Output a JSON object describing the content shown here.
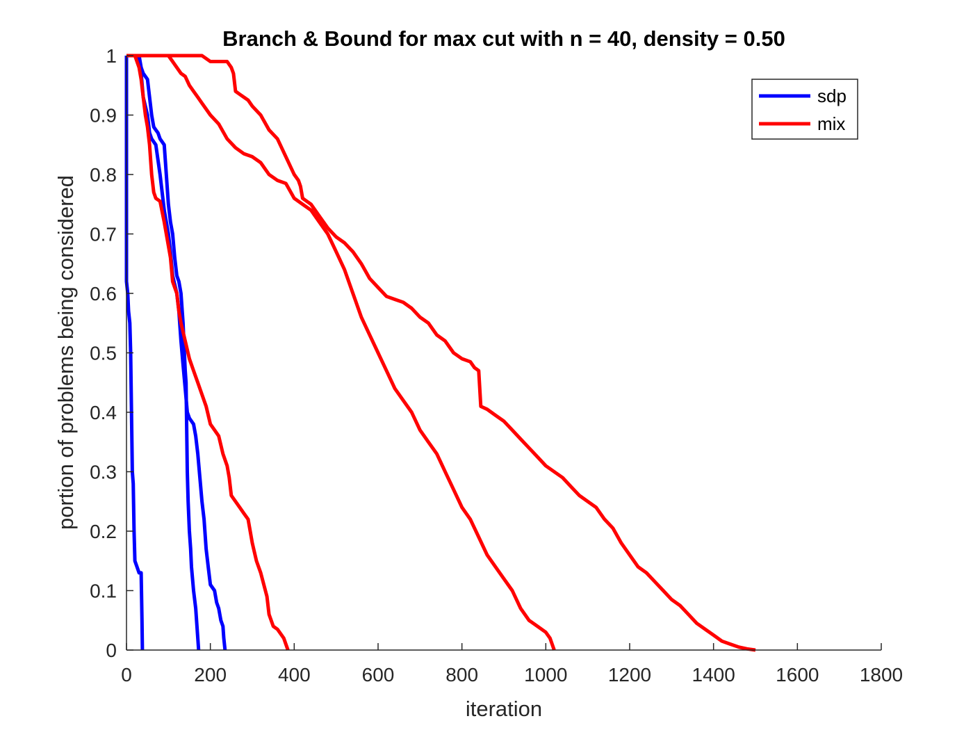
{
  "chart_data": {
    "type": "line",
    "title": "Branch & Bound for max cut with n = 40, density = 0.50",
    "xlabel": "iteration",
    "ylabel": "portion of problems being considered",
    "xlim": [
      0,
      1800
    ],
    "ylim": [
      0,
      1
    ],
    "xticks": [
      0,
      200,
      400,
      600,
      800,
      1000,
      1200,
      1400,
      1600,
      1800
    ],
    "yticks": [
      0,
      0.1,
      0.2,
      0.3,
      0.4,
      0.5,
      0.6,
      0.7,
      0.8,
      0.9,
      1
    ],
    "grid": false,
    "legend": {
      "position": "top-right",
      "entries": [
        {
          "name": "sdp",
          "color": "#0000ff"
        },
        {
          "name": "mix",
          "color": "#ff0000"
        }
      ]
    },
    "series": [
      {
        "name": "sdp",
        "color": "#0000ff",
        "points": [
          [
            0,
            1
          ],
          [
            0,
            0.62
          ],
          [
            3,
            0.6
          ],
          [
            5,
            0.57
          ],
          [
            8,
            0.55
          ],
          [
            10,
            0.5
          ],
          [
            12,
            0.4
          ],
          [
            14,
            0.3
          ],
          [
            16,
            0.28
          ],
          [
            18,
            0.2
          ],
          [
            20,
            0.15
          ],
          [
            25,
            0.14
          ],
          [
            30,
            0.13
          ],
          [
            35,
            0.13
          ],
          [
            37,
            0.05
          ],
          [
            38,
            0
          ]
        ]
      },
      {
        "name": "sdp",
        "color": "#0000ff",
        "points": [
          [
            30,
            1
          ],
          [
            35,
            0.98
          ],
          [
            40,
            0.97
          ],
          [
            50,
            0.96
          ],
          [
            55,
            0.93
          ],
          [
            60,
            0.9
          ],
          [
            65,
            0.88
          ],
          [
            70,
            0.875
          ],
          [
            75,
            0.87
          ],
          [
            80,
            0.86
          ],
          [
            90,
            0.85
          ],
          [
            95,
            0.8
          ],
          [
            100,
            0.75
          ],
          [
            105,
            0.72
          ],
          [
            110,
            0.7
          ],
          [
            115,
            0.66
          ],
          [
            120,
            0.63
          ],
          [
            125,
            0.62
          ],
          [
            130,
            0.6
          ],
          [
            135,
            0.55
          ],
          [
            138,
            0.5
          ],
          [
            140,
            0.47
          ],
          [
            142,
            0.45
          ],
          [
            143,
            0.4
          ],
          [
            144,
            0.35
          ],
          [
            145,
            0.3
          ],
          [
            147,
            0.25
          ],
          [
            150,
            0.2
          ],
          [
            153,
            0.17
          ],
          [
            155,
            0.14
          ],
          [
            160,
            0.1
          ],
          [
            165,
            0.07
          ],
          [
            168,
            0.04
          ],
          [
            170,
            0.02
          ],
          [
            172,
            0
          ]
        ]
      },
      {
        "name": "sdp",
        "color": "#0000ff",
        "points": [
          [
            28,
            1
          ],
          [
            35,
            0.97
          ],
          [
            40,
            0.93
          ],
          [
            50,
            0.9
          ],
          [
            55,
            0.87
          ],
          [
            60,
            0.86
          ],
          [
            70,
            0.85
          ],
          [
            80,
            0.8
          ],
          [
            90,
            0.74
          ],
          [
            100,
            0.7
          ],
          [
            105,
            0.67
          ],
          [
            110,
            0.63
          ],
          [
            120,
            0.6
          ],
          [
            125,
            0.57
          ],
          [
            130,
            0.52
          ],
          [
            135,
            0.48
          ],
          [
            140,
            0.44
          ],
          [
            145,
            0.4
          ],
          [
            150,
            0.39
          ],
          [
            160,
            0.38
          ],
          [
            165,
            0.36
          ],
          [
            170,
            0.33
          ],
          [
            175,
            0.29
          ],
          [
            180,
            0.25
          ],
          [
            185,
            0.22
          ],
          [
            190,
            0.17
          ],
          [
            195,
            0.14
          ],
          [
            200,
            0.11
          ],
          [
            210,
            0.1
          ],
          [
            215,
            0.08
          ],
          [
            220,
            0.07
          ],
          [
            225,
            0.05
          ],
          [
            230,
            0.04
          ],
          [
            232,
            0.02
          ],
          [
            235,
            0
          ]
        ]
      },
      {
        "name": "mix",
        "color": "#ff0000",
        "points": [
          [
            0,
            1
          ],
          [
            20,
            1
          ],
          [
            25,
            0.99
          ],
          [
            30,
            0.98
          ],
          [
            35,
            0.96
          ],
          [
            40,
            0.93
          ],
          [
            45,
            0.9
          ],
          [
            50,
            0.88
          ],
          [
            55,
            0.85
          ],
          [
            60,
            0.8
          ],
          [
            65,
            0.77
          ],
          [
            70,
            0.76
          ],
          [
            80,
            0.755
          ],
          [
            90,
            0.72
          ],
          [
            95,
            0.7
          ],
          [
            100,
            0.68
          ],
          [
            105,
            0.66
          ],
          [
            110,
            0.62
          ],
          [
            120,
            0.6
          ],
          [
            125,
            0.57
          ],
          [
            130,
            0.55
          ],
          [
            140,
            0.52
          ],
          [
            150,
            0.49
          ],
          [
            160,
            0.47
          ],
          [
            170,
            0.45
          ],
          [
            180,
            0.43
          ],
          [
            190,
            0.41
          ],
          [
            200,
            0.38
          ],
          [
            210,
            0.37
          ],
          [
            220,
            0.36
          ],
          [
            230,
            0.33
          ],
          [
            240,
            0.31
          ],
          [
            245,
            0.29
          ],
          [
            250,
            0.26
          ],
          [
            260,
            0.25
          ],
          [
            270,
            0.24
          ],
          [
            280,
            0.23
          ],
          [
            290,
            0.22
          ],
          [
            300,
            0.18
          ],
          [
            310,
            0.15
          ],
          [
            320,
            0.13
          ],
          [
            335,
            0.09
          ],
          [
            340,
            0.06
          ],
          [
            350,
            0.04
          ],
          [
            360,
            0.035
          ],
          [
            375,
            0.02
          ],
          [
            380,
            0.01
          ],
          [
            385,
            0
          ]
        ]
      },
      {
        "name": "mix",
        "color": "#ff0000",
        "points": [
          [
            0,
            1
          ],
          [
            100,
            1
          ],
          [
            110,
            0.99
          ],
          [
            120,
            0.98
          ],
          [
            130,
            0.97
          ],
          [
            140,
            0.965
          ],
          [
            150,
            0.95
          ],
          [
            160,
            0.94
          ],
          [
            170,
            0.93
          ],
          [
            180,
            0.92
          ],
          [
            200,
            0.9
          ],
          [
            220,
            0.885
          ],
          [
            240,
            0.86
          ],
          [
            260,
            0.845
          ],
          [
            280,
            0.835
          ],
          [
            300,
            0.83
          ],
          [
            320,
            0.82
          ],
          [
            340,
            0.8
          ],
          [
            360,
            0.79
          ],
          [
            380,
            0.785
          ],
          [
            400,
            0.76
          ],
          [
            420,
            0.75
          ],
          [
            440,
            0.74
          ],
          [
            460,
            0.72
          ],
          [
            480,
            0.7
          ],
          [
            500,
            0.67
          ],
          [
            520,
            0.64
          ],
          [
            540,
            0.6
          ],
          [
            560,
            0.56
          ],
          [
            580,
            0.53
          ],
          [
            600,
            0.5
          ],
          [
            620,
            0.47
          ],
          [
            640,
            0.44
          ],
          [
            660,
            0.42
          ],
          [
            680,
            0.4
          ],
          [
            700,
            0.37
          ],
          [
            720,
            0.35
          ],
          [
            740,
            0.33
          ],
          [
            760,
            0.3
          ],
          [
            780,
            0.27
          ],
          [
            800,
            0.24
          ],
          [
            820,
            0.22
          ],
          [
            840,
            0.19
          ],
          [
            860,
            0.16
          ],
          [
            880,
            0.14
          ],
          [
            900,
            0.12
          ],
          [
            920,
            0.1
          ],
          [
            940,
            0.07
          ],
          [
            960,
            0.05
          ],
          [
            980,
            0.04
          ],
          [
            1000,
            0.03
          ],
          [
            1010,
            0.02
          ],
          [
            1020,
            0
          ]
        ]
      },
      {
        "name": "mix",
        "color": "#ff0000",
        "points": [
          [
            0,
            1
          ],
          [
            100,
            1
          ],
          [
            180,
            1
          ],
          [
            200,
            0.99
          ],
          [
            240,
            0.99
          ],
          [
            250,
            0.98
          ],
          [
            255,
            0.97
          ],
          [
            260,
            0.94
          ],
          [
            270,
            0.935
          ],
          [
            280,
            0.93
          ],
          [
            290,
            0.925
          ],
          [
            300,
            0.915
          ],
          [
            320,
            0.9
          ],
          [
            340,
            0.875
          ],
          [
            360,
            0.86
          ],
          [
            380,
            0.83
          ],
          [
            400,
            0.8
          ],
          [
            410,
            0.79
          ],
          [
            415,
            0.78
          ],
          [
            420,
            0.76
          ],
          [
            430,
            0.755
          ],
          [
            440,
            0.75
          ],
          [
            460,
            0.73
          ],
          [
            480,
            0.71
          ],
          [
            500,
            0.695
          ],
          [
            520,
            0.685
          ],
          [
            540,
            0.67
          ],
          [
            560,
            0.65
          ],
          [
            580,
            0.625
          ],
          [
            600,
            0.61
          ],
          [
            620,
            0.595
          ],
          [
            640,
            0.59
          ],
          [
            660,
            0.585
          ],
          [
            680,
            0.575
          ],
          [
            700,
            0.56
          ],
          [
            720,
            0.55
          ],
          [
            740,
            0.53
          ],
          [
            760,
            0.52
          ],
          [
            780,
            0.5
          ],
          [
            800,
            0.49
          ],
          [
            820,
            0.485
          ],
          [
            830,
            0.475
          ],
          [
            840,
            0.47
          ],
          [
            845,
            0.41
          ],
          [
            860,
            0.405
          ],
          [
            880,
            0.395
          ],
          [
            900,
            0.385
          ],
          [
            920,
            0.37
          ],
          [
            940,
            0.355
          ],
          [
            960,
            0.34
          ],
          [
            980,
            0.325
          ],
          [
            1000,
            0.31
          ],
          [
            1020,
            0.3
          ],
          [
            1040,
            0.29
          ],
          [
            1060,
            0.275
          ],
          [
            1080,
            0.26
          ],
          [
            1100,
            0.25
          ],
          [
            1120,
            0.24
          ],
          [
            1140,
            0.22
          ],
          [
            1160,
            0.205
          ],
          [
            1180,
            0.18
          ],
          [
            1200,
            0.16
          ],
          [
            1220,
            0.14
          ],
          [
            1240,
            0.13
          ],
          [
            1260,
            0.115
          ],
          [
            1280,
            0.1
          ],
          [
            1300,
            0.085
          ],
          [
            1320,
            0.075
          ],
          [
            1340,
            0.06
          ],
          [
            1360,
            0.045
          ],
          [
            1380,
            0.035
          ],
          [
            1400,
            0.025
          ],
          [
            1420,
            0.015
          ],
          [
            1440,
            0.01
          ],
          [
            1460,
            0.005
          ],
          [
            1480,
            0.002
          ],
          [
            1500,
            0
          ]
        ]
      }
    ]
  }
}
